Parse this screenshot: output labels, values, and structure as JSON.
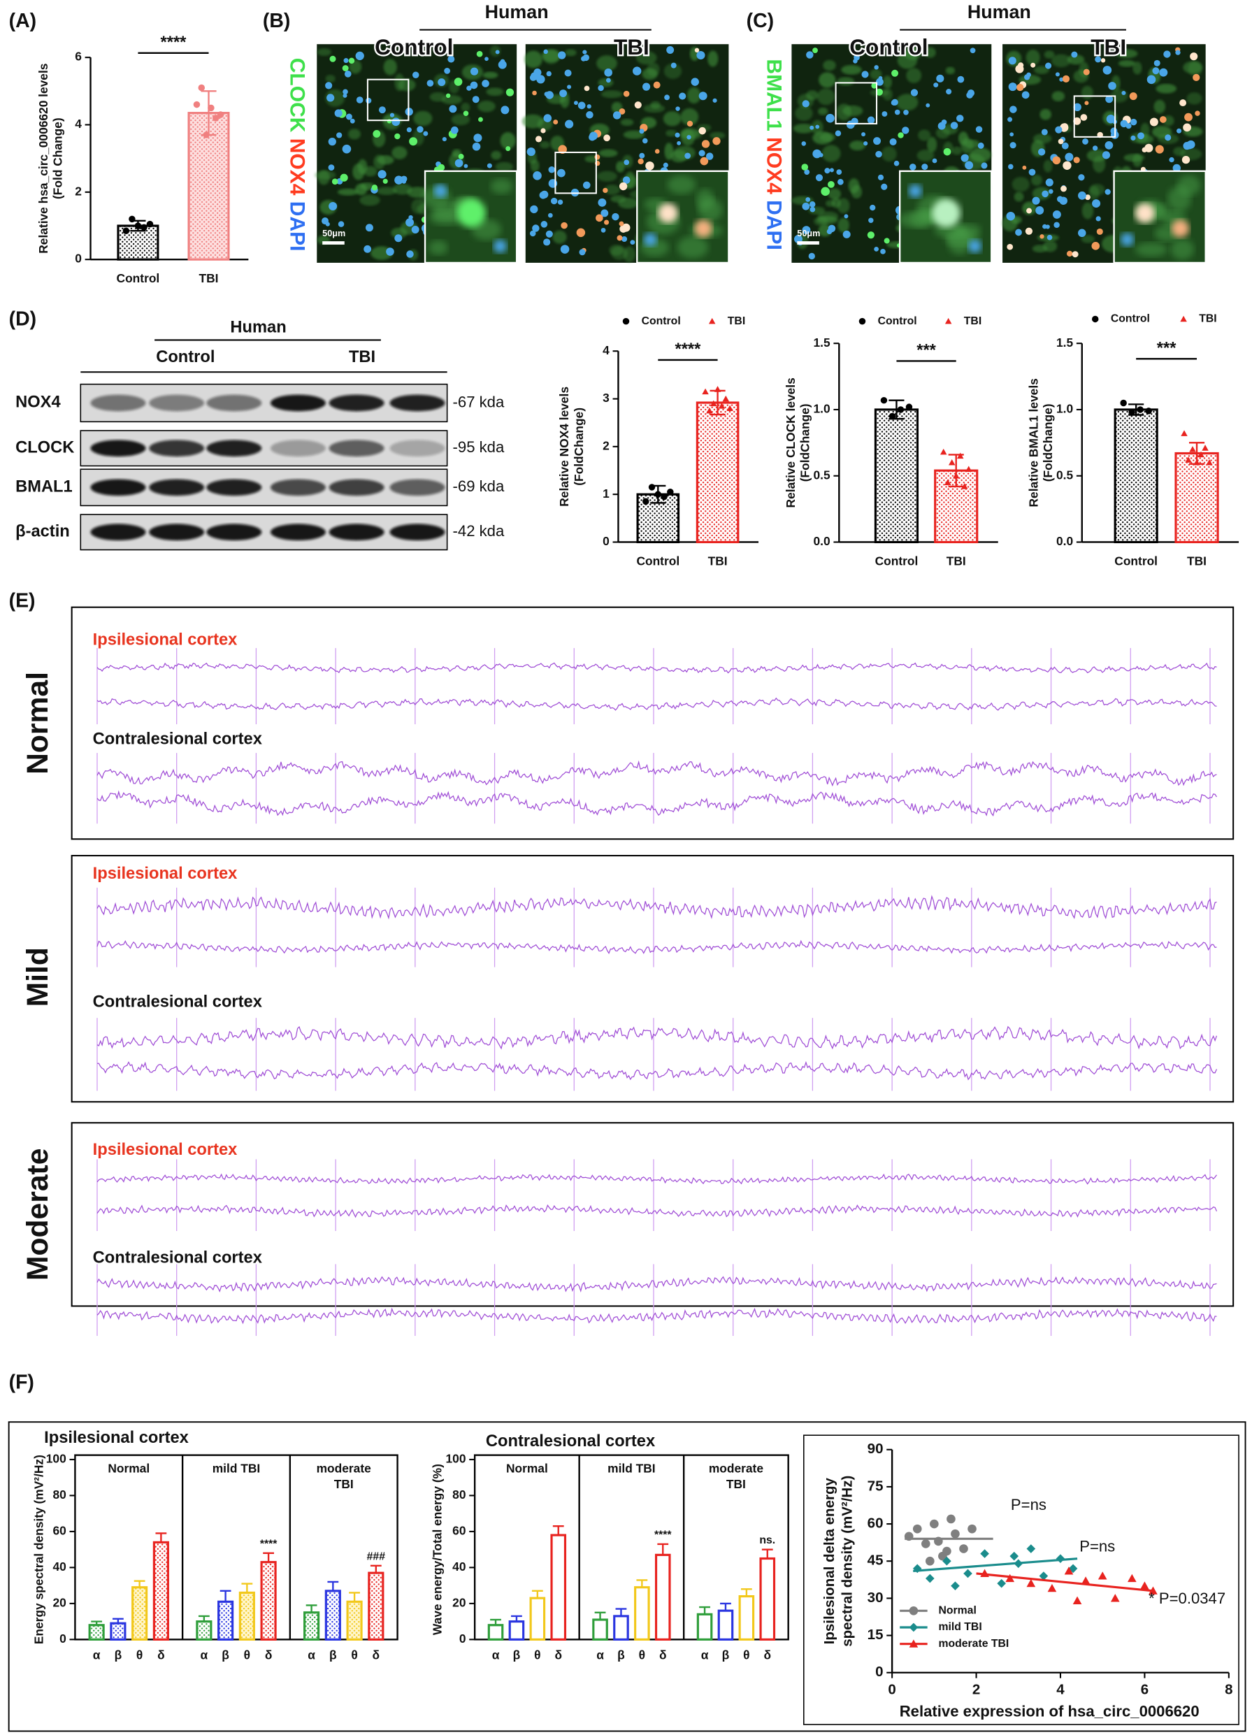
{
  "figure": {
    "panel_labels": [
      "(A)",
      "(B)",
      "(C)",
      "(D)",
      "(E)",
      "(F)"
    ],
    "panel_b": {
      "stain": [
        "CLOCK",
        "NOX4",
        "DAPI"
      ],
      "header": "Human",
      "columns": [
        "Control",
        "TBI"
      ],
      "scale_bar": "50μm"
    },
    "panel_c": {
      "stain": [
        "BMAL1",
        "NOX4",
        "DAPI"
      ],
      "header": "Human",
      "columns": [
        "Control",
        "TBI"
      ],
      "scale_bar": "50μm"
    },
    "panel_d_blot": {
      "header": "Human",
      "columns": [
        "Control",
        "TBI"
      ],
      "rows": [
        {
          "protein": "NOX4",
          "size": "-67 kda"
        },
        {
          "protein": "CLOCK",
          "size": "-95 kda"
        },
        {
          "protein": "BMAL1",
          "size": "-69 kda"
        },
        {
          "protein": "β-actin",
          "size": "-42 kda"
        }
      ]
    },
    "panel_e": {
      "rows": [
        {
          "group": "Normal",
          "traces": [
            "Ipsilesional cortex",
            "Contralesional cortex"
          ]
        },
        {
          "group": "Mild",
          "traces": [
            "Ipsilesional cortex",
            "Contralesional cortex"
          ]
        },
        {
          "group": "Moderate",
          "traces": [
            "Ipsilesional cortex",
            "Contralesional cortex"
          ]
        }
      ]
    }
  },
  "chart_data": [
    {
      "type": "bar",
      "ylabel": [
        "Relative hsa_circ_0006620 levels",
        "(Fold Change)"
      ],
      "categories": [
        "Control",
        "TBI"
      ],
      "values": [
        1,
        4.35
      ],
      "errors": [
        0.15,
        0.65
      ],
      "points": [
        [
          0.85,
          1.2,
          1.0,
          0.95,
          1.05
        ],
        [
          4.6,
          5.1,
          3.7,
          4.5,
          4.2,
          4.3
        ]
      ],
      "colors": [
        "#000000",
        "#f08080"
      ],
      "markers": [
        "circle",
        "circle"
      ],
      "ylim": [
        0,
        6
      ],
      "yticks": [
        0,
        2,
        4,
        6
      ],
      "significance": "****",
      "legend": false
    },
    {
      "type": "bar",
      "ylabel": [
        "Relative NOX4 levels",
        "(FoldChange)"
      ],
      "categories": [
        "Control",
        "TBI"
      ],
      "values": [
        1,
        2.92
      ],
      "errors": [
        0.18,
        0.25
      ],
      "points": [
        [
          0.85,
          1.15,
          1.0,
          0.95,
          1.05
        ],
        [
          3.15,
          2.75,
          2.9,
          3.2,
          2.85,
          3.0,
          2.8
        ]
      ],
      "colors": [
        "#000000",
        "#e8231f"
      ],
      "markers": [
        "circle",
        "triangle"
      ],
      "ylim": [
        0,
        4
      ],
      "yticks": [
        0,
        1,
        2,
        3,
        4
      ],
      "significance": "****",
      "legend": true
    },
    {
      "type": "bar",
      "ylabel": [
        "Relative CLOCK levels",
        "(FoldChange)"
      ],
      "categories": [
        "Control",
        "TBI"
      ],
      "values": [
        1,
        0.54
      ],
      "errors": [
        0.07,
        0.12
      ],
      "points": [
        [
          1.07,
          0.95,
          1.0,
          1.02
        ],
        [
          0.68,
          0.45,
          0.6,
          0.5,
          0.65,
          0.42,
          0.55
        ]
      ],
      "colors": [
        "#000000",
        "#e8231f"
      ],
      "markers": [
        "circle",
        "triangle"
      ],
      "ylim": [
        0,
        1.5
      ],
      "yticks": [
        {
          "value": 0,
          "label": "0.0"
        },
        0.5,
        {
          "value": 1,
          "label": "1.0"
        },
        1.5
      ],
      "significance": "***",
      "legend": true
    },
    {
      "type": "bar",
      "ylabel": [
        "Relative BMAL1 levels",
        "(FoldChange)"
      ],
      "categories": [
        "Control",
        "TBI"
      ],
      "values": [
        1,
        0.67
      ],
      "errors": [
        0.04,
        0.08
      ],
      "points": [
        [
          1.05,
          0.98,
          1.0,
          0.99
        ],
        [
          0.82,
          0.62,
          0.7,
          0.6,
          0.66,
          0.71,
          0.6
        ]
      ],
      "colors": [
        "#000000",
        "#e8231f"
      ],
      "markers": [
        "circle",
        "triangle"
      ],
      "ylim": [
        0,
        1.5
      ],
      "yticks": [
        {
          "value": 0,
          "label": "0.0"
        },
        0.5,
        {
          "value": 1,
          "label": "1.0"
        },
        1.5
      ],
      "significance": "***",
      "legend": true
    },
    {
      "type": "grouped_bar",
      "title": "Ipsilesional cortex",
      "title_color": "#e8231f",
      "ylabel": "Energy spectral density (mV²/Hz)",
      "groups": [
        [
          "Normal"
        ],
        [
          "mild TBI"
        ],
        [
          "moderate",
          "TBI"
        ]
      ],
      "categories": [
        "α",
        "β",
        "θ",
        "δ"
      ],
      "colors": [
        "#2e9e3a",
        "#2a35e0",
        "#f2c81b",
        "#e8231f"
      ],
      "pattern": "dots",
      "values": [
        [
          8,
          9,
          29,
          54
        ],
        [
          10,
          21,
          26,
          43
        ],
        [
          15,
          27,
          21,
          37
        ]
      ],
      "errors": [
        [
          2,
          2.5,
          3.5,
          5
        ],
        [
          3,
          6,
          5,
          5
        ],
        [
          4,
          5,
          5,
          4
        ]
      ],
      "annotations": [
        [
          null,
          null,
          null,
          null
        ],
        [
          null,
          null,
          null,
          "****"
        ],
        [
          null,
          null,
          null,
          "###"
        ]
      ],
      "ylim": [
        0,
        100
      ],
      "yticks": [
        0,
        20,
        40,
        60,
        80,
        100
      ]
    },
    {
      "type": "grouped_bar",
      "title": "Contralesional cortex",
      "title_color": "#111111",
      "ylabel": "Wave energy/Total energy (%)",
      "groups": [
        [
          "Normal"
        ],
        [
          "mild TBI"
        ],
        [
          "moderate",
          "TBI"
        ]
      ],
      "categories": [
        "α",
        "β",
        "θ",
        "δ"
      ],
      "colors": [
        "#2e9e3a",
        "#2a35e0",
        "#f2c81b",
        "#e8231f"
      ],
      "pattern": "none",
      "values": [
        [
          8,
          10,
          23,
          58
        ],
        [
          11,
          13,
          29,
          47
        ],
        [
          14,
          16,
          24,
          45
        ]
      ],
      "errors": [
        [
          3,
          3,
          4,
          5
        ],
        [
          4,
          4,
          4,
          6
        ],
        [
          4,
          4,
          4,
          5
        ]
      ],
      "annotations": [
        [
          null,
          null,
          null,
          null
        ],
        [
          null,
          null,
          null,
          "****"
        ],
        [
          null,
          null,
          null,
          "ns."
        ]
      ],
      "ylim": [
        0,
        100
      ],
      "yticks": [
        0,
        20,
        40,
        60,
        80,
        100
      ]
    },
    {
      "type": "scatter",
      "xlabel": "Relative expression of  hsa_circ_0006620",
      "ylabel": [
        "Ipsilesional delta energy",
        "spectral density (mV²/Hz)"
      ],
      "xlim": [
        0,
        8
      ],
      "xticks": [
        0,
        2,
        4,
        6,
        8
      ],
      "ylim": [
        0,
        90
      ],
      "yticks": [
        0,
        15,
        30,
        45,
        60,
        75,
        90
      ],
      "legend": "lower left",
      "series": [
        {
          "name": "Normal",
          "color": "#7f7f7f",
          "marker": "circle",
          "x": [
            0.4,
            0.6,
            0.8,
            1.0,
            1.2,
            1.4,
            1.5,
            1.7,
            1.9,
            0.9,
            1.1,
            1.3
          ],
          "y": [
            55,
            58,
            52,
            60,
            47,
            62,
            56,
            50,
            58,
            45,
            53,
            49
          ],
          "fit": {
            "x": [
              0.3,
              2.4
            ],
            "y": [
              54,
              54
            ]
          },
          "annotation": "P=ns"
        },
        {
          "name": "mild TBI",
          "color": "#1a8c8c",
          "marker": "diamond",
          "x": [
            0.6,
            0.9,
            1.3,
            1.8,
            2.2,
            2.6,
            3.0,
            3.3,
            3.6,
            4.0,
            4.3,
            1.5,
            2.9
          ],
          "y": [
            42,
            38,
            45,
            40,
            48,
            36,
            44,
            50,
            39,
            46,
            42,
            35,
            47
          ],
          "fit": {
            "x": [
              0.5,
              4.4
            ],
            "y": [
              41,
              46
            ]
          },
          "annotation": "P=ns"
        },
        {
          "name": "moderate TBI",
          "color": "#e8231f",
          "marker": "triangle",
          "x": [
            2.2,
            2.8,
            3.3,
            3.8,
            4.2,
            4.6,
            5.0,
            5.3,
            5.7,
            6.0,
            6.2,
            4.4
          ],
          "y": [
            40,
            38,
            36,
            34,
            41,
            37,
            39,
            30,
            38,
            35,
            33,
            29
          ],
          "fit": {
            "x": [
              2.0,
              6.2
            ],
            "y": [
              40,
              33
            ]
          },
          "annotation": "* P=0.0347"
        }
      ]
    }
  ]
}
